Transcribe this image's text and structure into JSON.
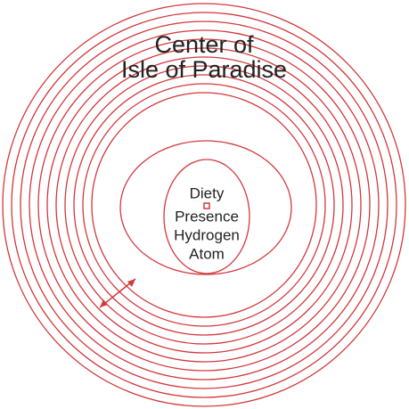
{
  "title": {
    "line1": "Center of",
    "line2": "Isle of Paradise"
  },
  "center": {
    "lines": [
      "Diety",
      "Presence",
      "Hydrogen",
      "Atom"
    ]
  }
}
